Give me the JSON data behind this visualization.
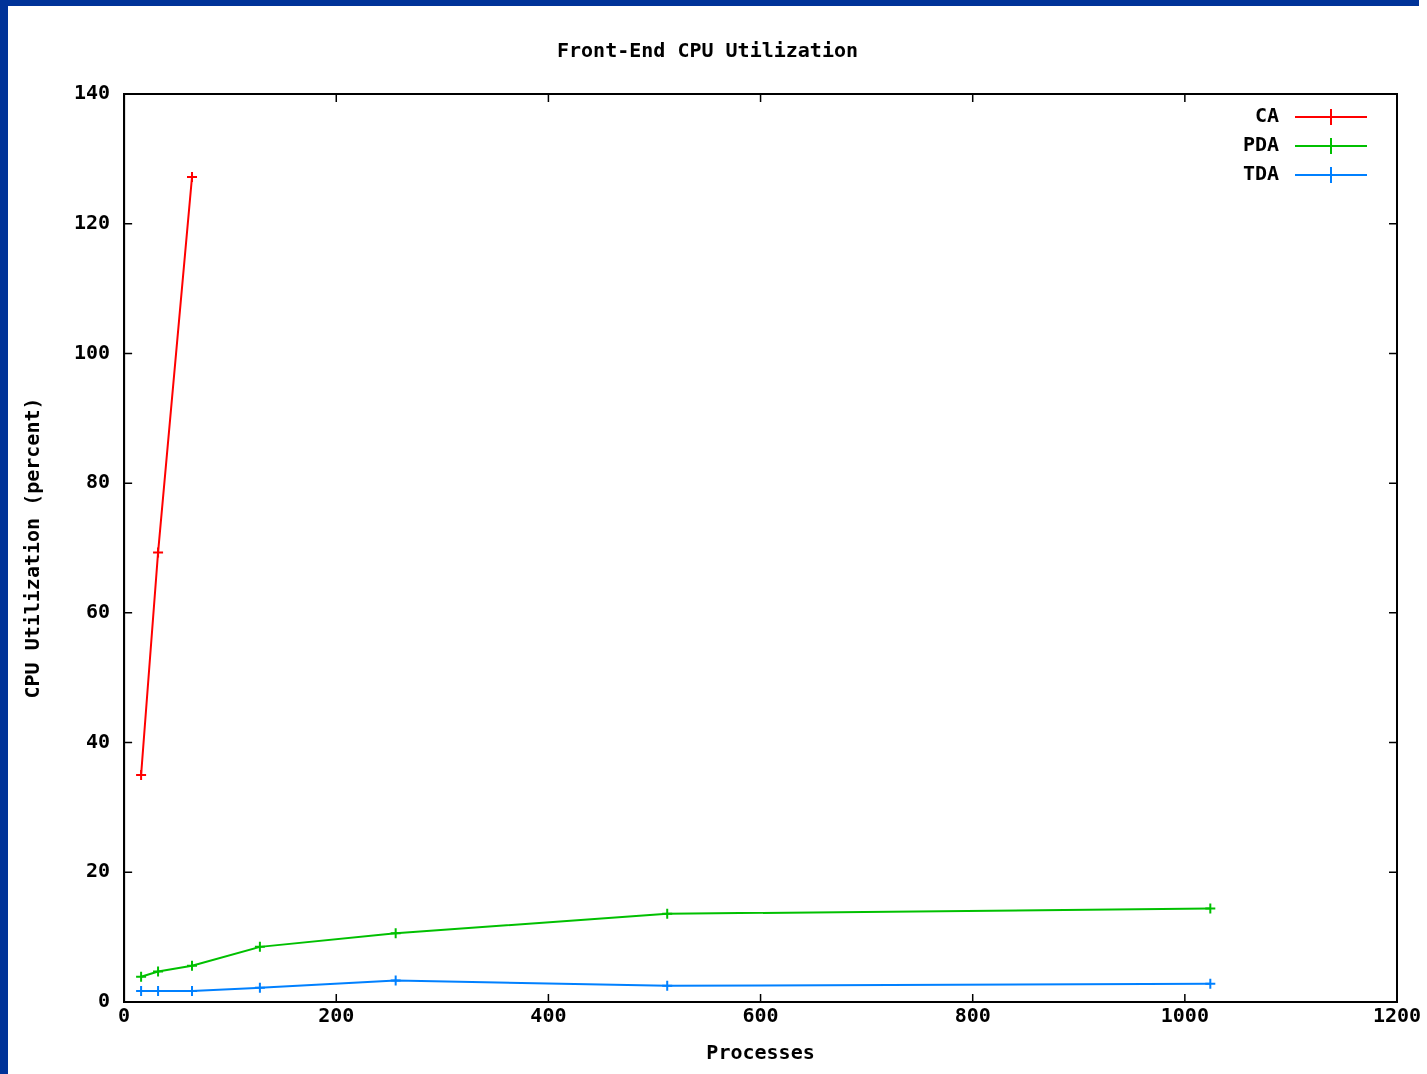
{
  "chart_data": {
    "type": "line",
    "title": "Front-End CPU Utilization",
    "xlabel": "Processes",
    "ylabel": "CPU Utilization (percent)",
    "xlim": [
      0,
      1200
    ],
    "xticks": [
      0,
      200,
      400,
      600,
      800,
      1000,
      1200
    ],
    "ylim": [
      0,
      140
    ],
    "yticks": [
      0,
      20,
      40,
      60,
      80,
      100,
      120,
      140
    ],
    "grid": false,
    "legend": "top right",
    "series": [
      {
        "name": "CA",
        "color": "#ff0000",
        "marker": "cross",
        "x": [
          16,
          32,
          64
        ],
        "values": [
          35,
          69.3,
          127.2
        ]
      },
      {
        "name": "PDA",
        "color": "#00c000",
        "marker": "cross",
        "x": [
          16,
          32,
          64,
          128,
          256,
          512,
          1024
        ],
        "values": [
          3.9,
          4.7,
          5.6,
          8.5,
          10.6,
          13.6,
          14.4
        ]
      },
      {
        "name": "TDA",
        "color": "#0080ff",
        "marker": "cross",
        "x": [
          16,
          32,
          64,
          128,
          256,
          512,
          1024
        ],
        "values": [
          1.7,
          1.7,
          1.7,
          2.2,
          3.3,
          2.5,
          2.8
        ]
      }
    ]
  }
}
